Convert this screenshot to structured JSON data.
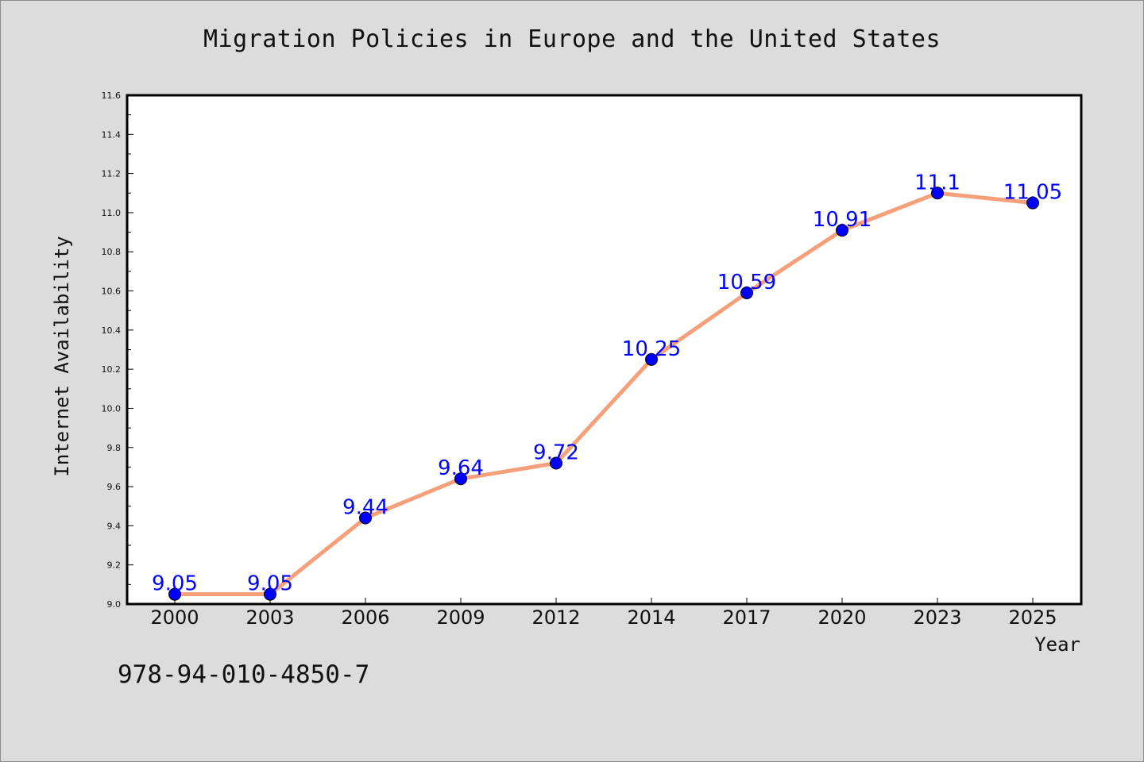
{
  "chart_data": {
    "type": "line",
    "title": "Migration Policies in Europe and the United States",
    "xlabel": "Year",
    "ylabel": "Internet Availability",
    "categories": [
      "2000",
      "2003",
      "2006",
      "2009",
      "2012",
      "2014",
      "2017",
      "2020",
      "2023",
      "2025"
    ],
    "series": [
      {
        "values": [
          9.05,
          9.05,
          9.44,
          9.64,
          9.72,
          10.25,
          10.59,
          10.91,
          11.1,
          11.05
        ],
        "labels": [
          "9.05",
          "9.05",
          "9.44",
          "9.64",
          "9.72",
          "10.25",
          "10.59",
          "10.91",
          "11.1",
          "11.05"
        ],
        "line_color": "#f5a07a",
        "marker_color": "#0000ff"
      }
    ],
    "ylim": [
      9.0,
      11.6
    ],
    "yticks": [
      "9.0",
      "9.2",
      "9.4",
      "9.6",
      "9.8",
      "10.0",
      "10.2",
      "10.4",
      "10.6",
      "10.8",
      "11.0",
      "11.2",
      "11.4",
      "11.6"
    ],
    "grid": false,
    "data_label_color": "#0000ff"
  },
  "footer_code": "978-94-010-4850-7"
}
